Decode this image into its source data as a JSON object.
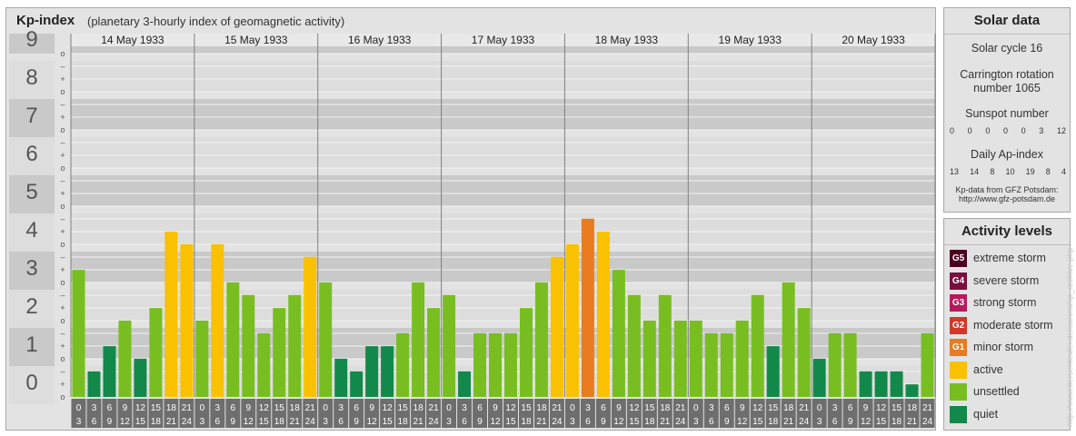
{
  "title": {
    "main": "Kp-index",
    "subtitle": "(planetary 3-hourly index of geomagnetic activity)"
  },
  "chart_data": {
    "type": "bar",
    "days": [
      "14 May 1933",
      "15 May 1933",
      "16 May 1933",
      "17 May 1933",
      "18 May 1933",
      "19 May 1933",
      "20 May 1933"
    ],
    "interval_starts": [
      "0",
      "3",
      "6",
      "9",
      "12",
      "15",
      "18",
      "21"
    ],
    "interval_ends": [
      "3",
      "6",
      "9",
      "12",
      "15",
      "18",
      "21",
      "24"
    ],
    "y_ticks": [
      "0",
      "1",
      "2",
      "3",
      "4",
      "5",
      "6",
      "7",
      "8",
      "9"
    ],
    "sub_ticks": [
      "o",
      "+",
      "–"
    ],
    "ylim": [
      0,
      9.33
    ],
    "values": [
      3.33,
      0.67,
      1.33,
      2.0,
      1.0,
      2.33,
      4.33,
      4.0,
      2.0,
      4.0,
      3.0,
      2.67,
      1.67,
      2.33,
      2.67,
      3.67,
      3.0,
      1.0,
      0.67,
      1.33,
      1.33,
      1.67,
      3.0,
      2.33,
      2.67,
      0.67,
      1.67,
      1.67,
      1.67,
      2.33,
      3.0,
      3.67,
      4.0,
      4.67,
      4.33,
      3.33,
      2.67,
      2.0,
      2.67,
      2.0,
      2.0,
      1.67,
      1.67,
      2.0,
      2.67,
      1.33,
      3.0,
      2.33,
      1.0,
      1.67,
      1.67,
      0.67,
      0.67,
      0.67,
      0.33,
      1.67
    ],
    "colors": {
      "quiet": "#12894a",
      "unsettled": "#78be21",
      "active": "#f9c100",
      "minor_storm": "#e87c1e",
      "band_dark": "#c9c9c9",
      "band_light": "#dddddd",
      "axis_dark": "#6e6e6e"
    }
  },
  "solar_data": {
    "title": "Solar data",
    "solar_cycle": "Solar cycle 16",
    "carrington_line1": "Carrington rotation",
    "carrington_line2": "number 1065",
    "sunspot_label": "Sunspot number",
    "sunspot_values": [
      "0",
      "0",
      "0",
      "0",
      "0",
      "3",
      "12"
    ],
    "ap_label": "Daily Ap-index",
    "ap_values": [
      "13",
      "14",
      "8",
      "10",
      "19",
      "8",
      "4"
    ],
    "source_line1": "Kp-data from GFZ Potsdam:",
    "source_line2": "http://www.gfz-potsdam.de"
  },
  "activity_levels": {
    "title": "Activity levels",
    "items": [
      {
        "code": "G5",
        "label": "extreme storm",
        "color": "#4b0020"
      },
      {
        "code": "G4",
        "label": "severe storm",
        "color": "#7a0e3e"
      },
      {
        "code": "G3",
        "label": "strong storm",
        "color": "#b7185c"
      },
      {
        "code": "G2",
        "label": "moderate storm",
        "color": "#d2382a"
      },
      {
        "code": "G1",
        "label": "minor storm",
        "color": "#e87c1e"
      },
      {
        "code": "",
        "label": "active",
        "color": "#f9c100"
      },
      {
        "code": "",
        "label": "unsettled",
        "color": "#78be21"
      },
      {
        "code": "",
        "label": "quiet",
        "color": "#12894a"
      }
    ]
  },
  "credit": "http://www.tiersenteufel.de/aurora/kp_archive.php"
}
